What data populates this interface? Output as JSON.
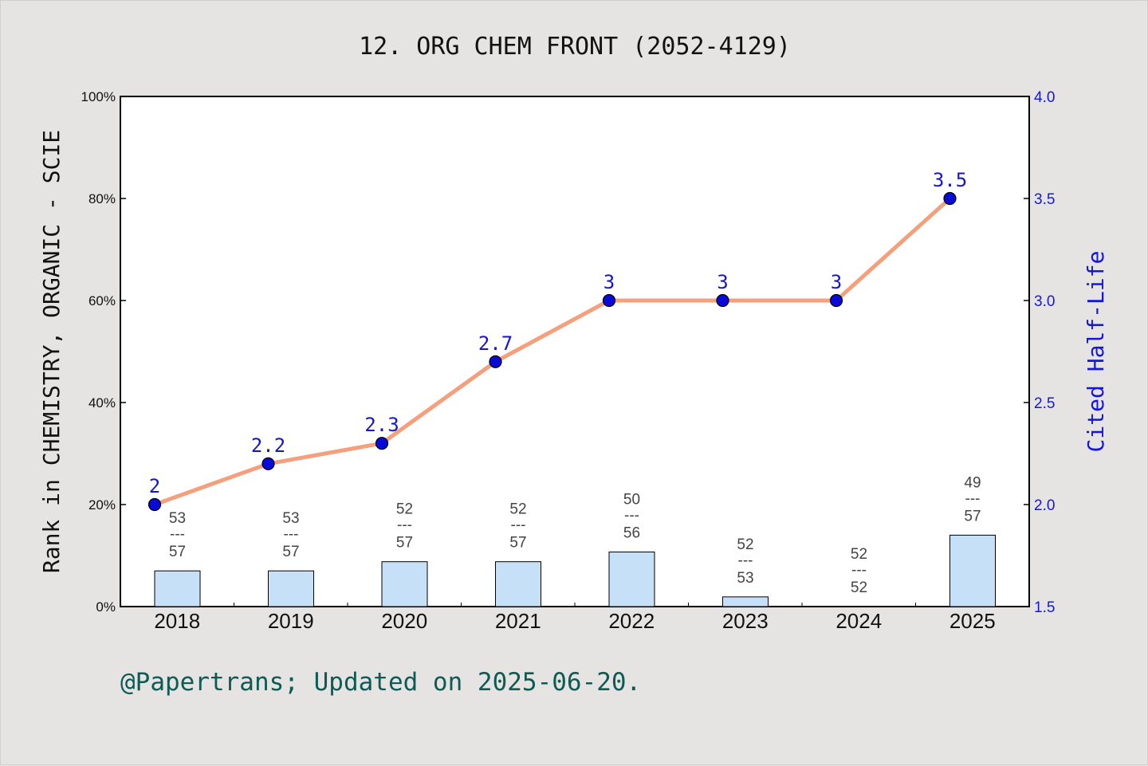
{
  "chart_data": {
    "type": "bar+line",
    "title": "12. ORG CHEM FRONT (2052-4129)",
    "ylabel": "Rank in CHEMISTRY, ORGANIC - SCIE",
    "y2label": "Cited Half-Life",
    "categories": [
      "2018",
      "2019",
      "2020",
      "2021",
      "2022",
      "2023",
      "2024",
      "2025"
    ],
    "ylim": [
      0,
      100
    ],
    "yticks": [
      "0%",
      "20%",
      "40%",
      "60%",
      "80%",
      "100%"
    ],
    "y2lim": [
      1.5,
      4.0
    ],
    "y2ticks": [
      "1.5",
      "2.0",
      "2.5",
      "3.0",
      "3.5",
      "4.0"
    ],
    "bars": {
      "name": "Rank percentile",
      "values": [
        7.0,
        7.0,
        8.8,
        8.8,
        10.7,
        1.9,
        0.0,
        14.0
      ],
      "rank": [
        "53",
        "53",
        "52",
        "52",
        "50",
        "52",
        "52",
        "49"
      ],
      "total": [
        "57",
        "57",
        "57",
        "57",
        "56",
        "53",
        "52",
        "57"
      ],
      "separator": "---",
      "color": "#c5e0f7"
    },
    "line": {
      "name": "Cited Half-Life",
      "values": [
        2,
        2.2,
        2.3,
        2.7,
        3,
        3,
        3,
        3.5
      ],
      "labels": [
        "2",
        "2.2",
        "2.3",
        "2.7",
        "3",
        "3",
        "3",
        "3.5"
      ],
      "line_color": "#f4a07c",
      "marker_color": "#0a0ad8"
    },
    "grid": false
  },
  "footer": "@Papertrans; Updated on 2025-06-20."
}
